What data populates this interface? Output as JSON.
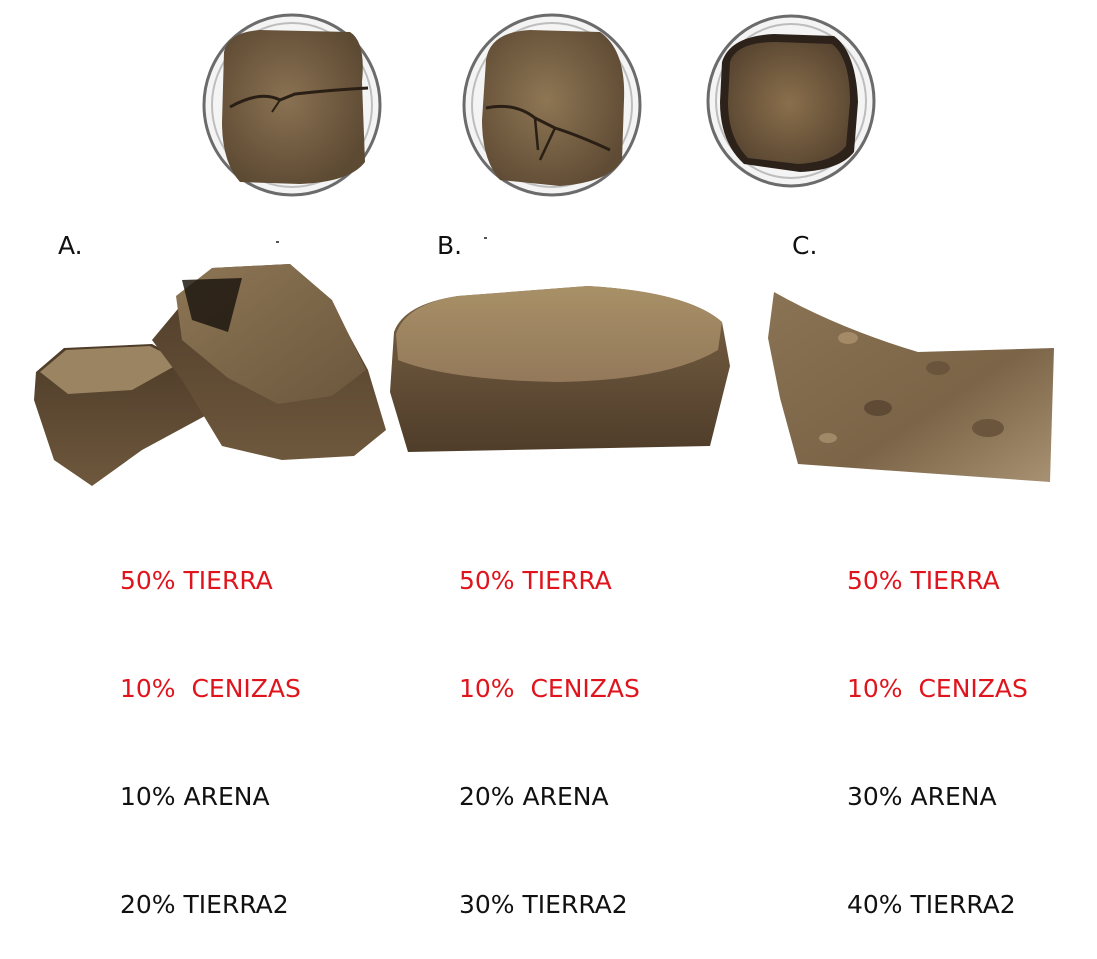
{
  "samples": [
    {
      "label": "A.",
      "composition": [
        "50% TIERRA",
        "10%  CENIZAS",
        "10% ARENA",
        "20% TIERRA2"
      ]
    },
    {
      "label": "B.",
      "composition": [
        "50% TIERRA",
        "10%  CENIZAS",
        "20% ARENA",
        "30% TIERRA2"
      ]
    },
    {
      "label": "C.",
      "composition": [
        "50% TIERRA",
        "10%  CENIZAS",
        "30% ARENA",
        "40% TIERRA2"
      ]
    }
  ],
  "colors": {
    "highlight_text": "#e0141c",
    "body_text": "#111111",
    "soil_dark": "#5e4a33",
    "soil_mid": "#7d6647",
    "soil_light": "#a0865f"
  }
}
